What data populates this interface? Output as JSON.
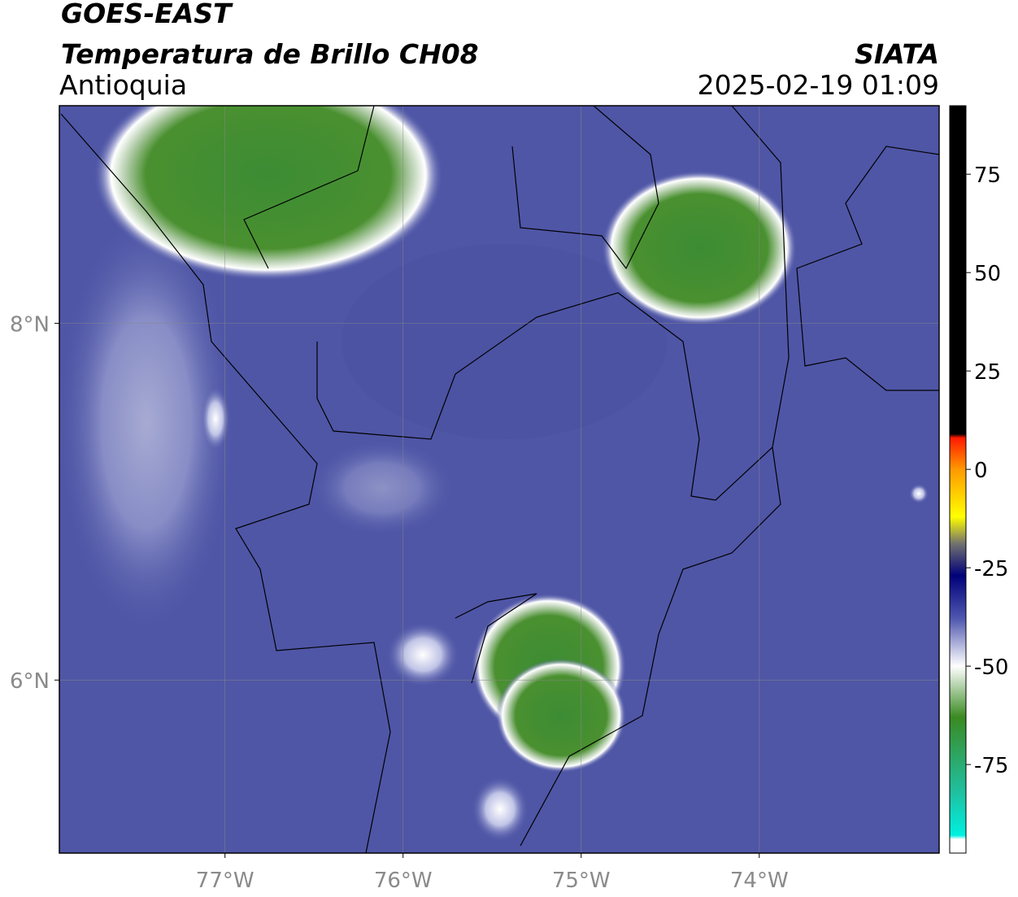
{
  "header": {
    "satellite": "GOES-EAST",
    "product": "Temperatura de Brillo CH08",
    "region": "Antioquia",
    "source": "SIATA",
    "datetime": "2025-02-19 01:09"
  },
  "map": {
    "xlim": [
      -77.93,
      -72.99
    ],
    "ylim": [
      5.03,
      9.22
    ],
    "xticks": [
      {
        "value": -77,
        "label": "77°W"
      },
      {
        "value": -76,
        "label": "76°W"
      },
      {
        "value": -75,
        "label": "75°W"
      },
      {
        "value": -74,
        "label": "74°W"
      }
    ],
    "yticks": [
      {
        "value": 6,
        "label": "6°N"
      },
      {
        "value": 8,
        "label": "8°N"
      }
    ],
    "grid": true
  },
  "colorbar": {
    "lim": [
      -97.5,
      92.4
    ],
    "ticks": [
      -75,
      -50,
      -25,
      0,
      25,
      50,
      75
    ],
    "stops": [
      {
        "value": 92.4,
        "color": "#000000"
      },
      {
        "value": 9,
        "color": "#000000"
      },
      {
        "value": 8,
        "color": "#ff1a00"
      },
      {
        "value": 0,
        "color": "#ff9900"
      },
      {
        "value": -12,
        "color": "#ffff00"
      },
      {
        "value": -19,
        "color": "#707070"
      },
      {
        "value": -27,
        "color": "#00007a"
      },
      {
        "value": -38,
        "color": "#5058b0"
      },
      {
        "value": -50,
        "color": "#ffffff"
      },
      {
        "value": -63,
        "color": "#3a8a22"
      },
      {
        "value": -82,
        "color": "#20c0a0"
      },
      {
        "value": -93,
        "color": "#00f0e0"
      },
      {
        "value": -94,
        "color": "#ffffff"
      },
      {
        "value": -97.5,
        "color": "#ffffff"
      }
    ]
  }
}
